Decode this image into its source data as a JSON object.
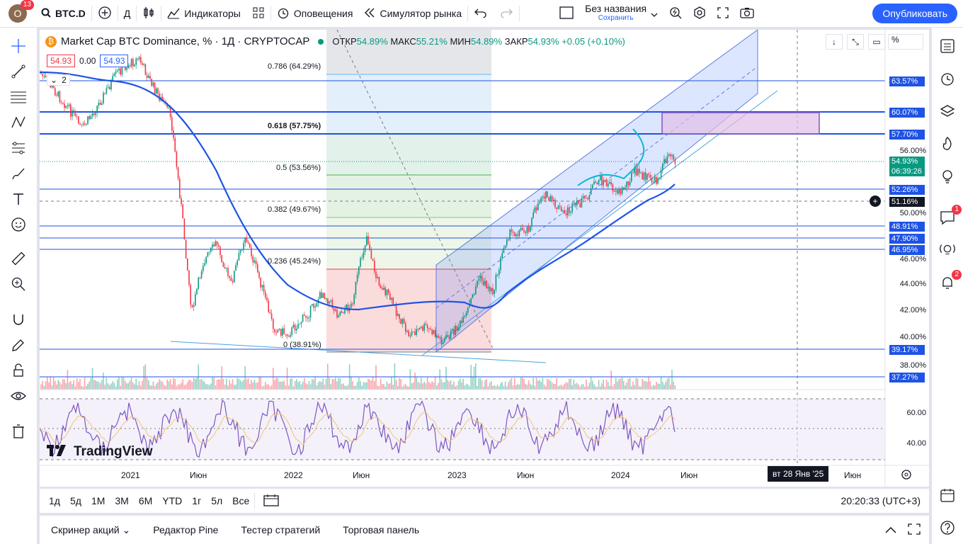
{
  "topbar": {
    "avatar_letter": "O",
    "avatar_badge": "13",
    "symbol": "BTC.D",
    "interval": "Д",
    "indicators": "Индикаторы",
    "alerts": "Оповещения",
    "simulator": "Симулятор рынка",
    "layout_name": "Без названия",
    "save": "Сохранить",
    "publish": "Опубликовать"
  },
  "legend": {
    "title": "Market Cap BTC Dominance, % · 1Д · CRYPTOCAP",
    "o_label": "ОТКР",
    "o_val": "54.89%",
    "h_label": "МАКС",
    "h_val": "55.21%",
    "l_label": "МИН",
    "l_val": "54.89%",
    "c_label": "ЗАКР",
    "c_val": "54.93%",
    "change": "+0.05 (+0.10%)",
    "bid": "54.93",
    "spread": "0.00",
    "ask": "54.93",
    "collapse_count": "2"
  },
  "fib_levels": [
    {
      "label": "0.786 (64.29%)",
      "color": "#64b5f6"
    },
    {
      "label": "0.618 (57.75%)",
      "color": "#089981"
    },
    {
      "label": "0.5 (53.56%)",
      "color": "#4caf50"
    },
    {
      "label": "0.382 (49.67%)",
      "color": "#81c784"
    },
    {
      "label": "0.236 (45.24%)",
      "color": "#f23645"
    },
    {
      "label": "0 (38.91%)",
      "color": "#787b86"
    }
  ],
  "price_axis": {
    "unit_button": "%",
    "ticks": [
      "56.00%",
      "50.00%",
      "46.00%",
      "44.00%",
      "42.00%",
      "40.00%",
      "38.00%",
      "60.00",
      "40.00"
    ],
    "tags": [
      {
        "label": "63.57%",
        "bg": "#1e53e5"
      },
      {
        "label": "60.07%",
        "bg": "#1e53e5"
      },
      {
        "label": "57.70%",
        "bg": "#1e53e5"
      },
      {
        "label": "54.93%",
        "bg": "#089981"
      },
      {
        "label": "06:39:26",
        "bg": "#089981"
      },
      {
        "label": "52.26%",
        "bg": "#1e53e5"
      },
      {
        "label": "51.16%",
        "bg": "#131722"
      },
      {
        "label": "48.91%",
        "bg": "#1e53e5"
      },
      {
        "label": "47.90%",
        "bg": "#1e53e5"
      },
      {
        "label": "46.95%",
        "bg": "#1e53e5"
      },
      {
        "label": "39.17%",
        "bg": "#1e53e5"
      },
      {
        "label": "37.27%",
        "bg": "#1e53e5"
      }
    ]
  },
  "time_axis": {
    "labels": [
      "2021",
      "Июн",
      "2022",
      "Июн",
      "2023",
      "Июн",
      "2024",
      "Июн",
      "Июн"
    ],
    "crosshair_date": "вт 28 Янв '25"
  },
  "watermark": "TradingView",
  "timeframes": [
    "1д",
    "5д",
    "1М",
    "3М",
    "6М",
    "YTD",
    "1г",
    "5л",
    "Все"
  ],
  "clock": "20:20:33 (UTC+3)",
  "bottom_tabs": [
    "Скринер акций",
    "Редактор Pine",
    "Тестер стратегий",
    "Торговая панель"
  ],
  "right_badges": {
    "chat": "1",
    "alerts": "2"
  },
  "colors": {
    "accent": "#2962ff",
    "up": "#089981",
    "down": "#f23645",
    "rsi": "#7e57c2"
  }
}
